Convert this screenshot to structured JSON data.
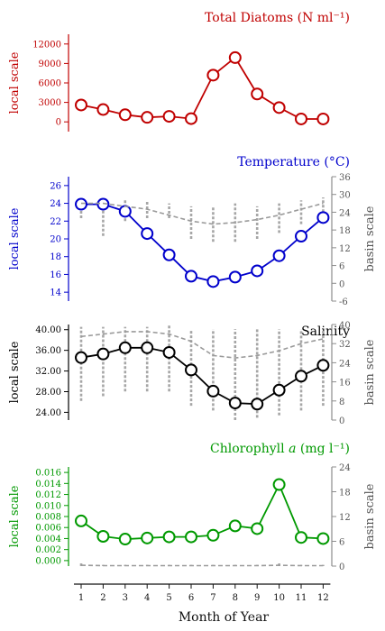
{
  "xlabel": "Month of Year",
  "months": [
    1,
    2,
    3,
    4,
    5,
    6,
    7,
    8,
    9,
    10,
    11,
    12
  ],
  "left_axis_label": "local scale",
  "right_axis_label": "basin scale",
  "chart_data": [
    {
      "type": "line",
      "title": "Total Diatoms (N ml⁻¹)",
      "color": "#c00000",
      "ylabel": "local scale",
      "ylim": [
        -1500,
        13500
      ],
      "yticks": [
        0,
        3000,
        6000,
        9000,
        12000
      ],
      "ytick_labels": [
        "0",
        "3000",
        "6000",
        "9000",
        "12000"
      ],
      "series": [
        {
          "values": [
            2600,
            1900,
            1100,
            700,
            850,
            500,
            7200,
            9900,
            4300,
            2200,
            450,
            450
          ]
        }
      ]
    },
    {
      "type": "line",
      "title": "Temperature (°C)",
      "color": "#0000cc",
      "ylabel": "local scale",
      "y2label": "basin scale",
      "ylim": [
        13,
        27
      ],
      "yticks": [
        14,
        16,
        18,
        20,
        22,
        24,
        26
      ],
      "ytick_labels": [
        "14",
        "16",
        "18",
        "20",
        "22",
        "24",
        "26"
      ],
      "y2lim": [
        -6,
        36
      ],
      "y2ticks": [
        -6,
        0,
        6,
        12,
        18,
        24,
        30,
        36
      ],
      "y2tick_labels": [
        "-6",
        "0",
        "6",
        "12",
        "18",
        "24",
        "30",
        "36"
      ],
      "series": [
        {
          "values": [
            23.9,
            23.9,
            23.1,
            20.6,
            18.2,
            15.8,
            15.2,
            15.7,
            16.4,
            18.1,
            20.3,
            22.4
          ]
        },
        {
          "axis": "right",
          "style": "dashed",
          "values": [
            27,
            27,
            26,
            25,
            23,
            21,
            20,
            20.5,
            21.5,
            23,
            25,
            27
          ]
        }
      ],
      "ranges": [
        {
          "axis": "right",
          "lows": [
            22,
            16,
            21,
            22,
            22,
            15,
            14,
            14,
            15,
            17,
            20,
            21
          ],
          "highs": [
            28,
            28,
            28,
            28,
            27,
            26,
            26,
            27,
            26,
            27,
            28,
            29
          ]
        }
      ]
    },
    {
      "type": "line",
      "title": "Salinity",
      "color": "#000000",
      "ylabel": "local scale",
      "y2label": "basin scale",
      "ylim": [
        22.5,
        41
      ],
      "yticks": [
        24,
        28,
        32,
        36,
        40
      ],
      "ytick_labels": [
        "24.00",
        "28.00",
        "32.00",
        "36.00",
        "40.00"
      ],
      "y2lim": [
        0,
        40
      ],
      "y2ticks": [
        0,
        8,
        16,
        24,
        32,
        40
      ],
      "y2tick_labels": [
        "0",
        "8",
        "16",
        "24",
        "32",
        "40"
      ],
      "series": [
        {
          "values": [
            34.6,
            35.3,
            36.5,
            36.5,
            35.6,
            32.2,
            28.1,
            25.8,
            25.6,
            28.3,
            31.0,
            33.1
          ]
        },
        {
          "axis": "right",
          "style": "dashed",
          "values": [
            35,
            36,
            37,
            37,
            36,
            33,
            27,
            26,
            27,
            29,
            32,
            34
          ]
        }
      ],
      "ranges": [
        {
          "axis": "right",
          "lows": [
            8,
            10,
            12,
            12,
            12,
            6,
            4,
            0,
            1,
            2,
            4,
            6
          ],
          "highs": [
            39,
            39,
            39,
            39,
            40,
            38,
            38,
            38,
            38,
            38,
            38,
            38
          ]
        }
      ]
    },
    {
      "type": "line",
      "title": "Chlorophyll a (mg l⁻¹)",
      "color": "#009900",
      "ylabel": "local scale",
      "y2label": "basin scale",
      "ylim": [
        -0.001,
        0.017
      ],
      "yticks": [
        0,
        0.002,
        0.004,
        0.006,
        0.008,
        0.01,
        0.012,
        0.014,
        0.016
      ],
      "ytick_labels": [
        "0.000",
        "0.002",
        "0.004",
        "0.006",
        "0.008",
        "0.010",
        "0.012",
        "0.014",
        "0.016"
      ],
      "y2lim": [
        0,
        24
      ],
      "y2ticks": [
        0,
        6,
        12,
        18,
        24
      ],
      "y2tick_labels": [
        "0",
        "6",
        "12",
        "18",
        "24"
      ],
      "series": [
        {
          "values": [
            0.0072,
            0.0044,
            0.0039,
            0.0041,
            0.0043,
            0.0043,
            0.0046,
            0.0063,
            0.0058,
            0.0138,
            0.0042,
            0.004
          ]
        },
        {
          "axis": "right",
          "style": "dashed",
          "values": [
            0.2,
            0.1,
            0.1,
            0.1,
            0.1,
            0.1,
            0.1,
            0.1,
            0.1,
            0.2,
            0.1,
            0.1
          ]
        }
      ],
      "ranges": [
        {
          "axis": "right",
          "lows": [
            0,
            0,
            0,
            0,
            0,
            0,
            0,
            0,
            0,
            0,
            0,
            0
          ],
          "highs": [
            0.8,
            0.3,
            0.3,
            0.3,
            0.3,
            0.3,
            0.3,
            0.3,
            0.3,
            1.0,
            0.3,
            0.3
          ]
        }
      ]
    }
  ]
}
